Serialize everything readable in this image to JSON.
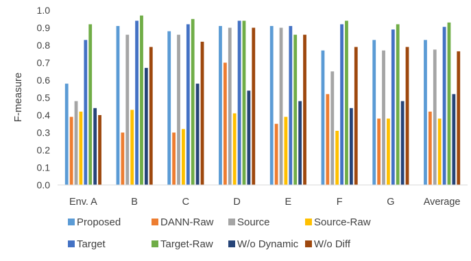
{
  "chart_data": {
    "type": "bar",
    "title": "",
    "xlabel": "",
    "ylabel": "F-measure",
    "ylim": [
      0,
      1.0
    ],
    "yticks": [
      "0.0",
      "0.1",
      "0.2",
      "0.3",
      "0.4",
      "0.5",
      "0.6",
      "0.7",
      "0.8",
      "0.9",
      "1.0"
    ],
    "grid": false,
    "legend_position": "bottom",
    "categories": [
      "Env. A",
      "B",
      "C",
      "D",
      "E",
      "F",
      "G",
      "Average"
    ],
    "series": [
      {
        "name": "Proposed",
        "color": "#5B9BD5",
        "values": [
          0.58,
          0.91,
          0.88,
          0.91,
          0.91,
          0.77,
          0.83,
          0.83
        ]
      },
      {
        "name": "DANN-Raw",
        "color": "#ED7D31",
        "values": [
          0.39,
          0.3,
          0.3,
          0.7,
          0.35,
          0.52,
          0.38,
          0.42
        ]
      },
      {
        "name": "Source",
        "color": "#A5A5A5",
        "values": [
          0.48,
          0.86,
          0.86,
          0.9,
          0.9,
          0.65,
          0.77,
          0.775
        ]
      },
      {
        "name": "Source-Raw",
        "color": "#FFC000",
        "values": [
          0.42,
          0.43,
          0.32,
          0.41,
          0.39,
          0.31,
          0.38,
          0.38
        ]
      },
      {
        "name": "Target",
        "color": "#4472C4",
        "values": [
          0.83,
          0.94,
          0.92,
          0.94,
          0.91,
          0.92,
          0.89,
          0.905
        ]
      },
      {
        "name": "Target-Raw",
        "color": "#70AD47",
        "values": [
          0.92,
          0.97,
          0.95,
          0.94,
          0.86,
          0.94,
          0.92,
          0.93
        ]
      },
      {
        "name": "W/o Dynamic",
        "color": "#264478",
        "values": [
          0.44,
          0.67,
          0.58,
          0.54,
          0.48,
          0.44,
          0.48,
          0.52
        ]
      },
      {
        "name": "W/o Diff",
        "color": "#9E480E",
        "values": [
          0.4,
          0.79,
          0.82,
          0.9,
          0.86,
          0.79,
          0.79,
          0.765
        ]
      }
    ]
  }
}
